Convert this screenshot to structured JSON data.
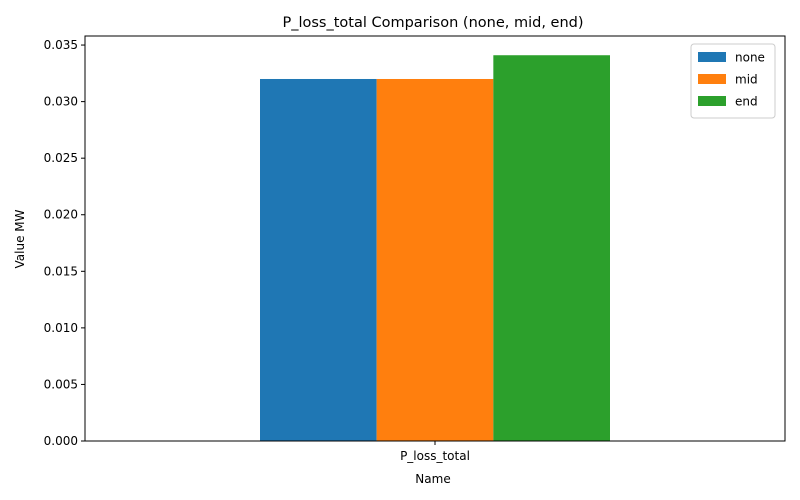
{
  "chart_data": {
    "type": "bar",
    "title": "P_loss_total Comparison (none, mid, end)",
    "xlabel": "Name",
    "ylabel": "Value MW",
    "categories": [
      "P_loss_total"
    ],
    "series": [
      {
        "name": "none",
        "values": [
          0.032
        ],
        "color": "#1f77b4"
      },
      {
        "name": "mid",
        "values": [
          0.032
        ],
        "color": "#ff7f0e"
      },
      {
        "name": "end",
        "values": [
          0.0341
        ],
        "color": "#2ca02c"
      }
    ],
    "ylim": [
      0,
      0.0358
    ],
    "yticks": [
      "0.000",
      "0.005",
      "0.010",
      "0.015",
      "0.020",
      "0.025",
      "0.030",
      "0.035"
    ],
    "ytick_values": [
      0,
      0.005,
      0.01,
      0.015,
      0.02,
      0.025,
      0.03,
      0.035
    ],
    "grid": false,
    "legend_position": "top-right"
  }
}
